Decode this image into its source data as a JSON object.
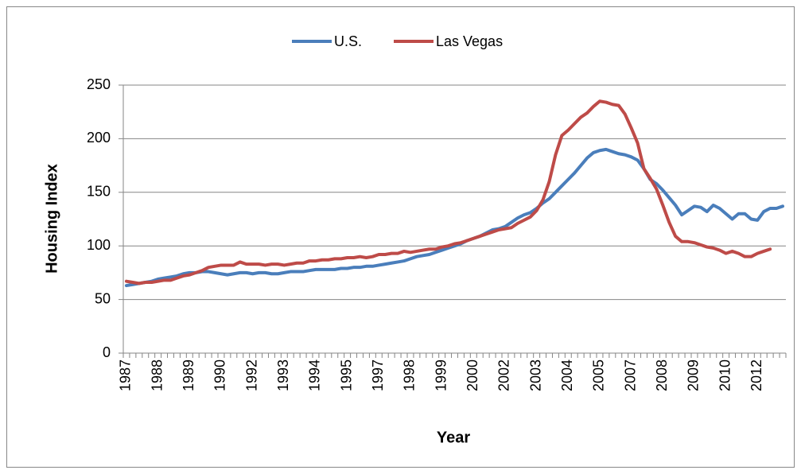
{
  "chart_data": {
    "type": "line",
    "x_label": "Year",
    "y_label": "Housing Index",
    "categories": [
      "1987",
      null,
      null,
      null,
      null,
      "1988",
      null,
      null,
      null,
      null,
      "1989",
      null,
      null,
      null,
      null,
      "1990",
      null,
      null,
      null,
      null,
      "1992",
      null,
      null,
      null,
      null,
      "1993",
      null,
      null,
      null,
      null,
      "1994",
      null,
      null,
      null,
      null,
      "1995",
      null,
      null,
      null,
      null,
      "1997",
      null,
      null,
      null,
      null,
      "1998",
      null,
      null,
      null,
      null,
      "1999",
      null,
      null,
      null,
      null,
      "2000",
      null,
      null,
      null,
      null,
      "2002",
      null,
      null,
      null,
      null,
      "2003",
      null,
      null,
      null,
      null,
      "2004",
      null,
      null,
      null,
      null,
      "2005",
      null,
      null,
      null,
      null,
      "2007",
      null,
      null,
      null,
      null,
      "2008",
      null,
      null,
      null,
      null,
      "2009",
      null,
      null,
      null,
      null,
      "2010",
      null,
      null,
      null,
      null,
      "2012",
      null,
      null,
      null,
      null
    ],
    "series": [
      {
        "name": "U.S.",
        "color": "#4a7ebb",
        "values": [
          63,
          64,
          65,
          66,
          67,
          69,
          70,
          71,
          72,
          74,
          75,
          75,
          76,
          76,
          75,
          74,
          73,
          74,
          75,
          75,
          74,
          75,
          75,
          74,
          74,
          75,
          76,
          76,
          76,
          77,
          78,
          78,
          78,
          78,
          79,
          79,
          80,
          80,
          81,
          81,
          82,
          83,
          84,
          85,
          86,
          88,
          90,
          91,
          92,
          94,
          96,
          98,
          100,
          102,
          105,
          107,
          109,
          112,
          115,
          116,
          118,
          122,
          126,
          129,
          131,
          135,
          140,
          144,
          150,
          156,
          162,
          168,
          175,
          182,
          187,
          189,
          190,
          188,
          186,
          185,
          183,
          180,
          172,
          162,
          158,
          152,
          145,
          138,
          129,
          133,
          137,
          136,
          132,
          138,
          135,
          130,
          125,
          130,
          130,
          125,
          124,
          132,
          135,
          135,
          137
        ]
      },
      {
        "name": "Las Vegas",
        "color": "#be4b48",
        "values": [
          67,
          66,
          65,
          66,
          66,
          67,
          68,
          68,
          70,
          72,
          73,
          75,
          77,
          80,
          81,
          82,
          82,
          82,
          85,
          83,
          83,
          83,
          82,
          83,
          83,
          82,
          83,
          84,
          84,
          86,
          86,
          87,
          87,
          88,
          88,
          89,
          89,
          90,
          89,
          90,
          92,
          92,
          93,
          93,
          95,
          94,
          95,
          96,
          97,
          97,
          99,
          100,
          102,
          103,
          105,
          107,
          109,
          111,
          113,
          115,
          116,
          117,
          121,
          124,
          127,
          133,
          143,
          160,
          185,
          203,
          208,
          214,
          220,
          224,
          230,
          235,
          234,
          232,
          231,
          223,
          210,
          196,
          172,
          163,
          153,
          138,
          122,
          109,
          104,
          104,
          103,
          101,
          99,
          98,
          96,
          93,
          95,
          93,
          90,
          90,
          93,
          95,
          97,
          null,
          null
        ]
      }
    ],
    "ylim": [
      0,
      250
    ],
    "yticks": [
      0,
      50,
      100,
      150,
      200,
      250
    ],
    "grid": true,
    "legend": "top"
  }
}
